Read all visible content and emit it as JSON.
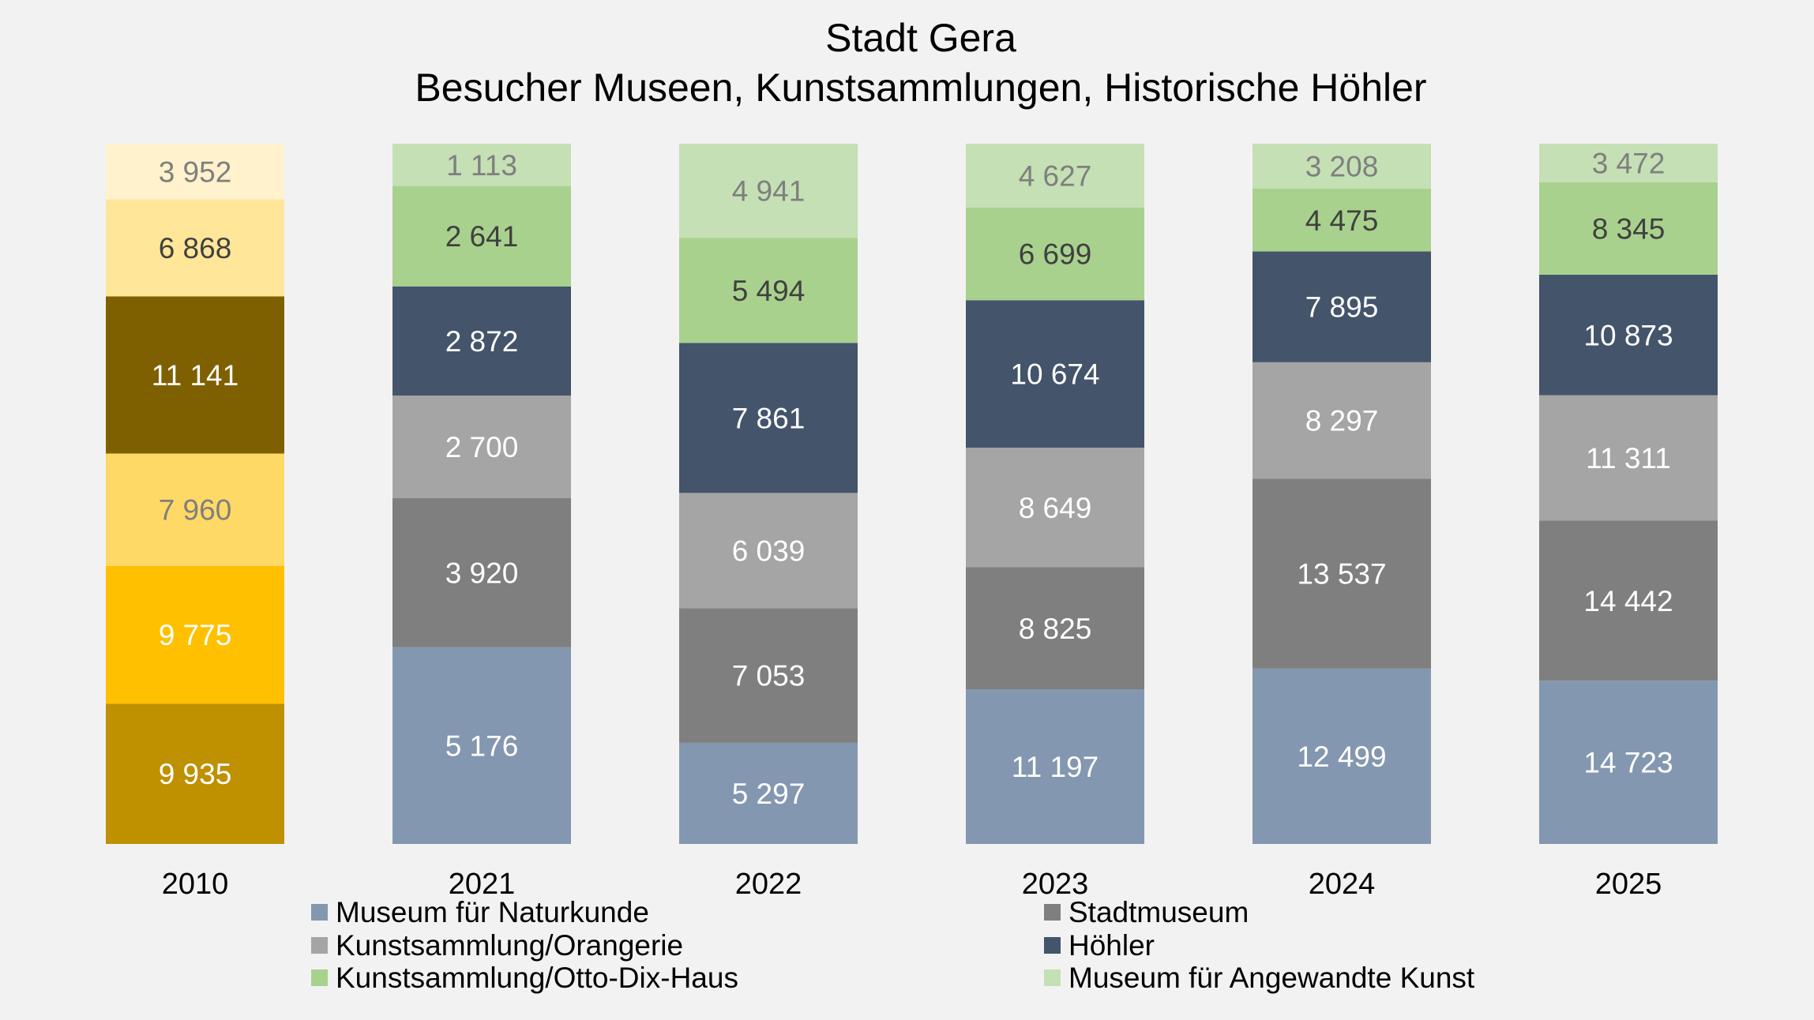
{
  "chart_data": {
    "type": "bar",
    "stacked": true,
    "title": [
      "Stadt Gera",
      "Besucher Museen, Kunstsammlungen, Historische Höhler"
    ],
    "categories": [
      "2010",
      "2021",
      "2022",
      "2023",
      "2024",
      "2025"
    ],
    "series": [
      {
        "name": "Museum für Naturkunde",
        "color": "#8497b0",
        "text_color": "#ffffff",
        "values": [
          null,
          5176,
          5297,
          11197,
          12499,
          14723
        ],
        "labels": [
          null,
          "5 176",
          "5 297",
          "11 197",
          "12 499",
          "14 723"
        ]
      },
      {
        "name": "Stadtmuseum",
        "color": "#7f7f7f",
        "text_color": "#ffffff",
        "values": [
          null,
          3920,
          7053,
          8825,
          13537,
          14442
        ],
        "labels": [
          null,
          "3 920",
          "7 053",
          "8 825",
          "13 537",
          "14 442"
        ]
      },
      {
        "name": "Kunstsammlung/Orangerie",
        "color": "#a5a5a5",
        "text_color": "#ffffff",
        "values": [
          null,
          2700,
          6039,
          8649,
          8297,
          11311
        ],
        "labels": [
          null,
          "2 700",
          "6 039",
          "8 649",
          "8 297",
          "11 311"
        ]
      },
      {
        "name": "Höhler",
        "color": "#44546a",
        "text_color": "#ffffff",
        "values": [
          null,
          2872,
          7861,
          10674,
          7895,
          10873
        ],
        "labels": [
          null,
          "2 872",
          "7 861",
          "10 674",
          "7 895",
          "10 873"
        ]
      },
      {
        "name": "Kunstsammlung/Otto-Dix-Haus",
        "color": "#a9d18e",
        "text_color": "#404040",
        "values": [
          null,
          2641,
          5494,
          6699,
          4475,
          8345
        ],
        "labels": [
          null,
          "2 641",
          "5 494",
          "6 699",
          "4 475",
          "8 345"
        ]
      },
      {
        "name": "Museum für Angewandte Kunst",
        "color": "#c5e0b4",
        "text_color": "#7f7f7f",
        "values": [
          null,
          1113,
          4941,
          4627,
          3208,
          3472
        ],
        "labels": [
          null,
          "1 113",
          "4 941",
          "4 627",
          "3 208",
          "3 472"
        ]
      }
    ],
    "series_2010": [
      {
        "color": "#bf9000",
        "text_color": "#ffffff",
        "value": 9935,
        "label": "9 935"
      },
      {
        "color": "#ffc000",
        "text_color": "#ffffff",
        "value": 9775,
        "label": "9 775"
      },
      {
        "color": "#ffd966",
        "text_color": "#7f7f7f",
        "value": 7960,
        "label": "7 960"
      },
      {
        "color": "#7f6000",
        "text_color": "#ffffff",
        "value": 11141,
        "label": "11 141"
      },
      {
        "color": "#ffe699",
        "text_color": "#404040",
        "value": 6868,
        "label": "6 868"
      },
      {
        "color": "#fff2cc",
        "text_color": "#7f7f7f",
        "value": 3952,
        "label": "3 952"
      }
    ],
    "normalized": true,
    "legend_position": "bottom",
    "grid": false
  }
}
